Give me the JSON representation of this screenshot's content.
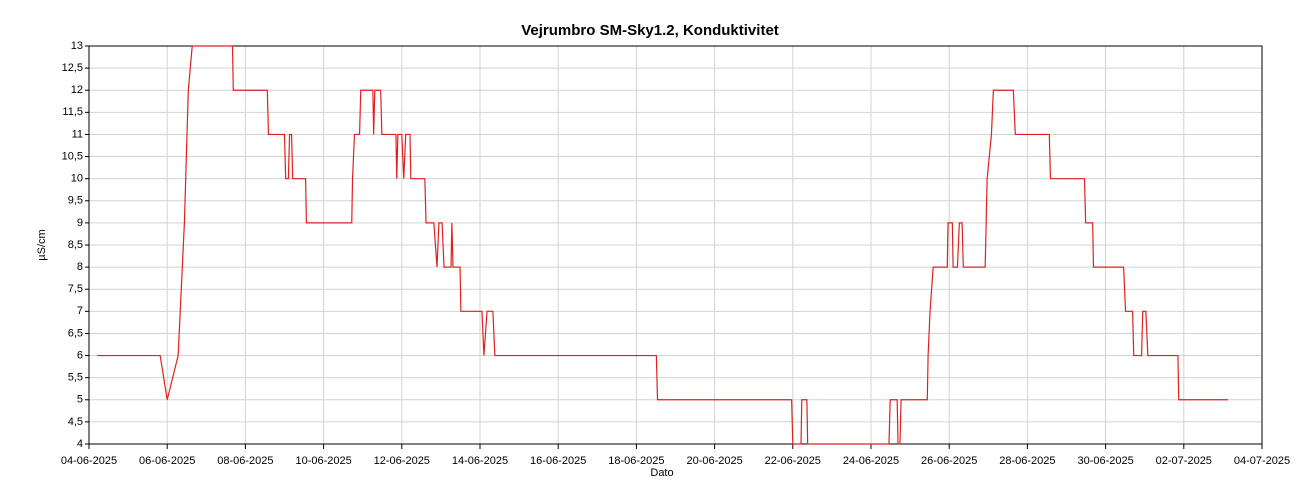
{
  "chart_data": {
    "type": "line",
    "title": "Vejrumbro SM-Sky1.2, Konduktivitet",
    "x_label": "Dato",
    "y_label": "µS/cm",
    "color": "#e02020",
    "grid": true,
    "xlim": [
      0,
      30
    ],
    "xticks": [
      {
        "value": 0,
        "label": "04-06-2025"
      },
      {
        "value": 2,
        "label": "06-06-2025"
      },
      {
        "value": 4,
        "label": "08-06-2025"
      },
      {
        "value": 6,
        "label": "10-06-2025"
      },
      {
        "value": 8,
        "label": "12-06-2025"
      },
      {
        "value": 10,
        "label": "14-06-2025"
      },
      {
        "value": 12,
        "label": "16-06-2025"
      },
      {
        "value": 14,
        "label": "18-06-2025"
      },
      {
        "value": 16,
        "label": "20-06-2025"
      },
      {
        "value": 18,
        "label": "22-06-2025"
      },
      {
        "value": 20,
        "label": "24-06-2025"
      },
      {
        "value": 22,
        "label": "26-06-2025"
      },
      {
        "value": 24,
        "label": "28-06-2025"
      },
      {
        "value": 26,
        "label": "30-06-2025"
      },
      {
        "value": 28,
        "label": "02-07-2025"
      },
      {
        "value": 30,
        "label": "04-07-2025"
      }
    ],
    "ylim": [
      4,
      13
    ],
    "yticks": [
      4,
      {
        "value": 4.5,
        "label": "4,5"
      },
      5,
      {
        "value": 5.5,
        "label": "5,5"
      },
      6,
      {
        "value": 6.5,
        "label": "6,5"
      },
      7,
      {
        "value": 7.5,
        "label": "7,5"
      },
      8,
      {
        "value": 8.5,
        "label": "8,5"
      },
      9,
      {
        "value": 9.5,
        "label": "9,5"
      },
      10,
      {
        "value": 10.5,
        "label": "10,5"
      },
      11,
      {
        "value": 11.5,
        "label": "11,5"
      },
      12,
      {
        "value": 12.5,
        "label": "12,5"
      },
      13
    ],
    "x": [
      0.21,
      1.82,
      2.0,
      2.28,
      2.44,
      2.54,
      2.64,
      3.67,
      3.69,
      4.56,
      4.59,
      5.0,
      5.03,
      5.1,
      5.13,
      5.18,
      5.21,
      5.54,
      5.56,
      6.72,
      6.74,
      6.79,
      6.92,
      6.95,
      7.26,
      7.28,
      7.31,
      7.46,
      7.49,
      7.85,
      7.87,
      7.9,
      8.0,
      8.05,
      8.1,
      8.21,
      8.23,
      8.59,
      8.62,
      8.82,
      8.9,
      8.95,
      9.03,
      9.08,
      9.26,
      9.28,
      9.31,
      9.49,
      9.51,
      10.05,
      10.1,
      10.18,
      10.33,
      10.38,
      14.51,
      14.54,
      17.97,
      18.0,
      18.21,
      18.23,
      18.36,
      18.38,
      20.46,
      20.49,
      20.67,
      20.69,
      20.74,
      20.77,
      21.44,
      21.46,
      21.51,
      21.59,
      21.95,
      21.97,
      22.08,
      22.1,
      22.21,
      22.26,
      22.33,
      22.36,
      22.92,
      22.97,
      23.08,
      23.13,
      23.64,
      23.69,
      24.56,
      24.59,
      25.46,
      25.49,
      25.67,
      25.69,
      26.46,
      26.51,
      26.69,
      26.72,
      26.92,
      26.95,
      27.03,
      27.08,
      27.85,
      27.87,
      29.13
    ],
    "values": [
      6,
      6,
      5,
      6,
      9,
      12,
      13,
      13,
      12,
      12,
      11,
      11,
      10,
      10,
      11,
      11,
      10,
      10,
      9,
      9,
      10,
      11,
      11,
      12,
      12,
      11,
      12,
      12,
      11,
      11,
      10,
      11,
      11,
      10,
      11,
      11,
      10,
      10,
      9,
      9,
      8,
      9,
      9,
      8,
      8,
      9,
      8,
      8,
      7,
      7,
      6,
      7,
      7,
      6,
      6,
      5,
      5,
      4,
      4,
      5,
      5,
      4,
      4,
      5,
      5,
      4,
      4,
      5,
      5,
      6,
      7,
      8,
      8,
      9,
      9,
      8,
      8,
      9,
      9,
      8,
      8,
      10,
      11,
      12,
      12,
      11,
      11,
      10,
      10,
      9,
      9,
      8,
      8,
      7,
      7,
      6,
      6,
      7,
      7,
      6,
      6,
      5,
      5
    ]
  }
}
